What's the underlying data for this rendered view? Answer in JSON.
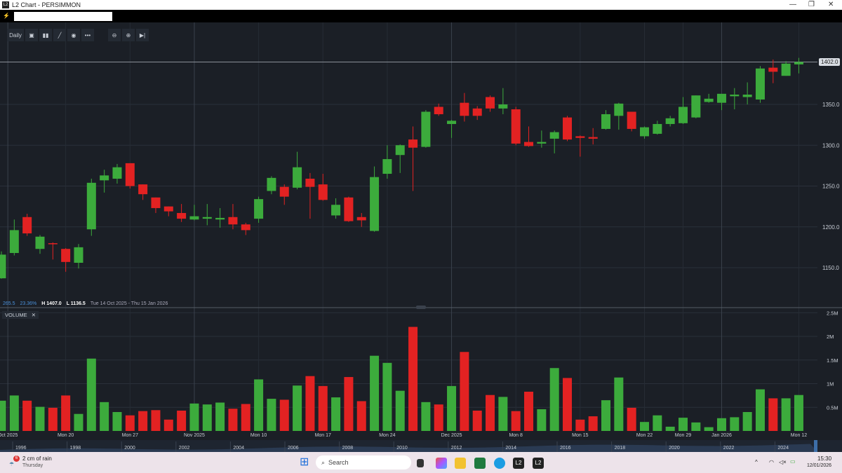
{
  "window": {
    "title": "L2 Chart - PERSIMMON",
    "logo": "L2",
    "controls": [
      "minimize-icon",
      "maximize-icon",
      "close-icon"
    ]
  },
  "command": {
    "value": "",
    "placeholder": ""
  },
  "toolbar": {
    "interval": "Daily",
    "buttons": [
      "chart-type-icon",
      "indicators-icon",
      "draw-icon",
      "view-icon",
      "more-icon",
      "zoom-out-icon",
      "zoom-in-icon",
      "jump-to-end-icon"
    ]
  },
  "status": {
    "change": "265.5",
    "change_pct": "23.36%",
    "high": "H 1407.0",
    "low": "L 1136.5",
    "range": "Tue 14 Oct 2025 - Thu 15 Jan 2026"
  },
  "last_price": "1402.0",
  "volume_panel": {
    "label": "VOLUME",
    "close": "✕"
  },
  "colors": {
    "up": "#3cab3c",
    "down": "#e32222",
    "background": "#1b1f26"
  },
  "chart_data": [
    {
      "type": "candlestick",
      "ylim": [
        1130,
        1420
      ],
      "y_ticks": [
        "1150.0",
        "1200.0",
        "1250.0",
        "1300.0",
        "1350.0"
      ],
      "ohlc": [
        [
          1137,
          1170,
          1136.5,
          1166
        ],
        [
          1168,
          1209,
          1165,
          1196
        ],
        [
          1212,
          1216,
          1189,
          1192
        ],
        [
          1173,
          1190,
          1167,
          1188
        ],
        [
          1180,
          1181,
          1160,
          1179
        ],
        [
          1173,
          1174,
          1145,
          1157
        ],
        [
          1156,
          1179,
          1149,
          1175
        ],
        [
          1197,
          1259,
          1189,
          1254
        ],
        [
          1257,
          1270,
          1242,
          1263
        ],
        [
          1259,
          1277,
          1253,
          1273
        ],
        [
          1278,
          1278,
          1247,
          1250
        ],
        [
          1252,
          1252,
          1233,
          1240
        ],
        [
          1236,
          1236,
          1217,
          1223
        ],
        [
          1225,
          1225,
          1213,
          1219
        ],
        [
          1217,
          1228,
          1206,
          1210
        ],
        [
          1209,
          1227,
          1208,
          1213
        ],
        [
          1210,
          1228,
          1202,
          1212
        ],
        [
          1209,
          1223,
          1199,
          1211
        ],
        [
          1212,
          1228,
          1197,
          1203
        ],
        [
          1203,
          1205,
          1190,
          1196
        ],
        [
          1210,
          1237,
          1205,
          1234
        ],
        [
          1244,
          1262,
          1240,
          1260
        ],
        [
          1249,
          1252,
          1227,
          1237
        ],
        [
          1248,
          1292,
          1246,
          1273
        ],
        [
          1259,
          1266,
          1210,
          1249
        ],
        [
          1252,
          1265,
          1232,
          1233
        ],
        [
          1214,
          1235,
          1210,
          1227
        ],
        [
          1236,
          1237,
          1206,
          1207
        ],
        [
          1212,
          1217,
          1200,
          1208
        ],
        [
          1195,
          1274,
          1194,
          1261
        ],
        [
          1265,
          1300,
          1259,
          1283
        ],
        [
          1288,
          1301,
          1266,
          1300
        ],
        [
          1307,
          1323,
          1244,
          1297
        ],
        [
          1298,
          1343,
          1297,
          1341
        ],
        [
          1347,
          1351,
          1336,
          1338
        ],
        [
          1326,
          1331,
          1309,
          1330
        ],
        [
          1352,
          1364,
          1329,
          1336
        ],
        [
          1345,
          1348,
          1331,
          1336
        ],
        [
          1359,
          1361,
          1341,
          1345
        ],
        [
          1345,
          1370,
          1338,
          1350
        ],
        [
          1344,
          1347,
          1300,
          1302
        ],
        [
          1304,
          1323,
          1298,
          1299
        ],
        [
          1302,
          1318,
          1297,
          1304
        ],
        [
          1308,
          1318,
          1290,
          1316
        ],
        [
          1334,
          1336,
          1305,
          1307
        ],
        [
          1311,
          1312,
          1286,
          1309
        ],
        [
          1310,
          1321,
          1301,
          1308
        ],
        [
          1320,
          1343,
          1319,
          1338
        ],
        [
          1336,
          1352,
          1319,
          1351
        ],
        [
          1341,
          1341,
          1317,
          1320
        ],
        [
          1311,
          1323,
          1308,
          1322
        ],
        [
          1314,
          1330,
          1313,
          1326
        ],
        [
          1326,
          1336,
          1323,
          1333
        ],
        [
          1327,
          1359,
          1326,
          1347
        ],
        [
          1334,
          1361,
          1333,
          1361
        ],
        [
          1353,
          1363,
          1352,
          1357
        ],
        [
          1352,
          1363,
          1343,
          1363
        ],
        [
          1360,
          1370,
          1344,
          1362
        ],
        [
          1359,
          1377,
          1350,
          1362
        ],
        [
          1356,
          1397,
          1352,
          1394
        ],
        [
          1395,
          1405,
          1376,
          1390
        ],
        [
          1385,
          1403,
          1385,
          1400
        ],
        [
          1399,
          1407,
          1388,
          1402
        ]
      ]
    },
    {
      "type": "bar",
      "name": "VOLUME",
      "ylim": [
        0,
        2.5
      ],
      "y_ticks": [
        "0.5M",
        "1M",
        "1.5M",
        "2M",
        "2.5M"
      ],
      "values": [
        0.64,
        0.75,
        0.64,
        0.51,
        0.49,
        0.75,
        0.36,
        1.53,
        0.61,
        0.4,
        0.33,
        0.42,
        0.44,
        0.24,
        0.43,
        0.58,
        0.56,
        0.6,
        0.47,
        0.57,
        1.09,
        0.68,
        0.66,
        0.96,
        1.16,
        0.95,
        0.71,
        1.14,
        0.63,
        1.59,
        1.44,
        0.85,
        2.2,
        0.61,
        0.56,
        0.95,
        1.67,
        0.43,
        0.76,
        0.72,
        0.42,
        0.83,
        0.46,
        1.33,
        1.12,
        0.24,
        0.31,
        0.65,
        1.13,
        0.49,
        0.19,
        0.33,
        0.09,
        0.28,
        0.18,
        0.08,
        0.27,
        0.29,
        0.4,
        0.88,
        0.69,
        0.69,
        0.76
      ]
    }
  ],
  "x_ticks": [
    {
      "label": "Oct 2025",
      "at": 0.5
    },
    {
      "label": "Mon 20",
      "at": 5
    },
    {
      "label": "Mon 27",
      "at": 10
    },
    {
      "label": "Nov 2025",
      "at": 15
    },
    {
      "label": "Mon 10",
      "at": 20
    },
    {
      "label": "Mon 17",
      "at": 25
    },
    {
      "label": "Mon 24",
      "at": 30
    },
    {
      "label": "Dec 2025",
      "at": 35
    },
    {
      "label": "Mon 8",
      "at": 40
    },
    {
      "label": "Mon 15",
      "at": 45
    },
    {
      "label": "Mon 22",
      "at": 50
    },
    {
      "label": "Mon 29",
      "at": 53
    },
    {
      "label": "Jan 2026",
      "at": 56
    },
    {
      "label": "Mon 12",
      "at": 62
    }
  ],
  "navigator_years": [
    "1996",
    "1998",
    "2000",
    "2002",
    "2004",
    "2006",
    "2008",
    "2010",
    "2012",
    "2014",
    "2016",
    "2018",
    "2020",
    "2022",
    "2024"
  ],
  "taskbar": {
    "weather_badge": "6",
    "weather": "2 cm of rain",
    "day": "Thursday",
    "search": "Search",
    "time": "15:30",
    "date": "12/01/2026",
    "apps": [
      "task-view-icon",
      "copilot-icon",
      "file-explorer-icon",
      "excel-icon",
      "edge-icon",
      "l2-app-icon",
      "l2-app-active-icon"
    ],
    "app_labels": [
      "L2",
      "L2"
    ]
  }
}
